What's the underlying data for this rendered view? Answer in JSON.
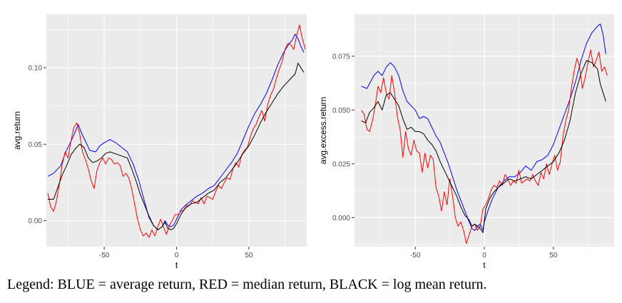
{
  "caption": "Legend: BLUE = average return, RED = median return, BLACK = log mean return.",
  "chart_data": [
    {
      "type": "line",
      "xlabel": "t",
      "ylabel": "avg.return",
      "xlim": [
        -90,
        90
      ],
      "ylim": [
        -0.017,
        0.135
      ],
      "xticks": [
        -50,
        0,
        50
      ],
      "xtick_labels": [
        "-50",
        "0",
        "50"
      ],
      "yticks": [
        0.0,
        0.05,
        0.1
      ],
      "ytick_labels": [
        "0.00",
        "0.05",
        "0.10"
      ],
      "grid": true,
      "series": [
        {
          "color": "#0000ff",
          "x": [
            -89,
            -85,
            -80,
            -77,
            -74,
            -71,
            -68,
            -66,
            -63,
            -60,
            -56,
            -53,
            -50,
            -46,
            -42,
            -38,
            -34,
            -30,
            -26,
            -22,
            -19,
            -16,
            -13,
            -10,
            -8,
            -6,
            -4,
            -2,
            0,
            3,
            6,
            10,
            14,
            18,
            22,
            26,
            30,
            34,
            38,
            42,
            46,
            50,
            54,
            58,
            62,
            66,
            70,
            74,
            78,
            80,
            82,
            84,
            86,
            88
          ],
          "y": [
            0.029,
            0.031,
            0.036,
            0.044,
            0.05,
            0.056,
            0.063,
            0.058,
            0.052,
            0.046,
            0.045,
            0.049,
            0.051,
            0.053,
            0.051,
            0.048,
            0.045,
            0.037,
            0.026,
            0.012,
            0.002,
            -0.003,
            -0.006,
            -0.004,
            0.0,
            -0.003,
            -0.004,
            -0.003,
            0.001,
            0.007,
            0.01,
            0.013,
            0.016,
            0.018,
            0.021,
            0.023,
            0.028,
            0.033,
            0.038,
            0.044,
            0.053,
            0.062,
            0.07,
            0.076,
            0.083,
            0.092,
            0.102,
            0.11,
            0.116,
            0.118,
            0.122,
            0.119,
            0.114,
            0.11
          ]
        },
        {
          "color": "#ff0000",
          "x": [
            -89,
            -87,
            -85,
            -83,
            -81,
            -79,
            -77,
            -75,
            -73,
            -71,
            -69,
            -67,
            -65,
            -63,
            -61,
            -59,
            -57,
            -55,
            -53,
            -51,
            -49,
            -47,
            -45,
            -43,
            -41,
            -39,
            -37,
            -35,
            -33,
            -31,
            -29,
            -27,
            -25,
            -23,
            -21,
            -19,
            -17,
            -15,
            -13,
            -11,
            -9,
            -7,
            -5,
            -3,
            -1,
            1,
            3,
            5,
            7,
            9,
            11,
            13,
            15,
            17,
            19,
            21,
            23,
            25,
            27,
            29,
            31,
            33,
            35,
            37,
            39,
            41,
            43,
            45,
            47,
            49,
            51,
            53,
            55,
            57,
            59,
            61,
            63,
            65,
            67,
            69,
            71,
            73,
            75,
            77,
            79,
            81,
            83,
            85,
            87,
            89
          ],
          "y": [
            0.018,
            0.009,
            0.006,
            0.013,
            0.024,
            0.037,
            0.045,
            0.041,
            0.052,
            0.061,
            0.064,
            0.057,
            0.045,
            0.04,
            0.034,
            0.026,
            0.021,
            0.033,
            0.038,
            0.041,
            0.037,
            0.041,
            0.04,
            0.037,
            0.038,
            0.036,
            0.029,
            0.031,
            0.028,
            0.021,
            0.011,
            0.001,
            -0.006,
            -0.01,
            -0.008,
            -0.011,
            -0.006,
            -0.01,
            -0.004,
            0.001,
            -0.004,
            -0.009,
            -0.003,
            0.0,
            0.004,
            0.004,
            0.006,
            0.007,
            0.01,
            0.01,
            0.013,
            0.012,
            0.011,
            0.015,
            0.011,
            0.016,
            0.015,
            0.014,
            0.019,
            0.023,
            0.021,
            0.025,
            0.028,
            0.027,
            0.034,
            0.038,
            0.035,
            0.043,
            0.046,
            0.048,
            0.055,
            0.06,
            0.063,
            0.068,
            0.072,
            0.065,
            0.076,
            0.082,
            0.086,
            0.093,
            0.099,
            0.104,
            0.112,
            0.116,
            0.115,
            0.112,
            0.121,
            0.128,
            0.119,
            0.112
          ]
        },
        {
          "color": "#000000",
          "x": [
            -89,
            -85,
            -82,
            -79,
            -76,
            -73,
            -70,
            -67,
            -64,
            -61,
            -58,
            -55,
            -52,
            -49,
            -46,
            -43,
            -40,
            -37,
            -34,
            -31,
            -28,
            -25,
            -22,
            -19,
            -16,
            -13,
            -10,
            -8,
            -6,
            -4,
            -2,
            0,
            3,
            6,
            10,
            14,
            18,
            22,
            26,
            30,
            34,
            38,
            42,
            46,
            50,
            54,
            58,
            62,
            66,
            70,
            74,
            78,
            82,
            84,
            86,
            88
          ],
          "y": [
            0.014,
            0.014,
            0.022,
            0.03,
            0.036,
            0.043,
            0.047,
            0.05,
            0.048,
            0.041,
            0.038,
            0.039,
            0.041,
            0.044,
            0.045,
            0.044,
            0.043,
            0.042,
            0.041,
            0.034,
            0.026,
            0.017,
            0.01,
            0.003,
            -0.003,
            -0.006,
            -0.004,
            -0.001,
            -0.005,
            -0.006,
            -0.005,
            -0.002,
            0.004,
            0.008,
            0.011,
            0.012,
            0.015,
            0.018,
            0.02,
            0.025,
            0.028,
            0.033,
            0.038,
            0.044,
            0.049,
            0.056,
            0.064,
            0.071,
            0.077,
            0.083,
            0.088,
            0.092,
            0.096,
            0.103,
            0.1,
            0.097
          ]
        }
      ]
    },
    {
      "type": "line",
      "xlabel": "t",
      "ylabel": "avg.excess.return",
      "xlim": [
        -94,
        94
      ],
      "ylim": [
        -0.0135,
        0.0945
      ],
      "xticks": [
        -50,
        0,
        50
      ],
      "xtick_labels": [
        "-50",
        "0",
        "50"
      ],
      "yticks": [
        0.0,
        0.025,
        0.05,
        0.075
      ],
      "ytick_labels": [
        "0.000",
        "0.025",
        "0.050",
        "0.075"
      ],
      "grid": true,
      "series": [
        {
          "color": "#0000ff",
          "x": [
            -89,
            -85,
            -80,
            -77,
            -74,
            -71,
            -68,
            -65,
            -62,
            -59,
            -56,
            -53,
            -50,
            -47,
            -44,
            -41,
            -38,
            -35,
            -32,
            -29,
            -26,
            -23,
            -20,
            -17,
            -14,
            -11,
            -9,
            -7,
            -5,
            -3,
            -1,
            0,
            3,
            6,
            10,
            14,
            18,
            22,
            26,
            30,
            34,
            38,
            42,
            46,
            50,
            54,
            58,
            62,
            66,
            70,
            74,
            78,
            82,
            84,
            86,
            88
          ],
          "y": [
            0.061,
            0.06,
            0.066,
            0.068,
            0.066,
            0.07,
            0.072,
            0.07,
            0.066,
            0.059,
            0.054,
            0.052,
            0.05,
            0.046,
            0.047,
            0.046,
            0.042,
            0.038,
            0.035,
            0.03,
            0.025,
            0.019,
            0.013,
            0.008,
            0.003,
            -0.002,
            -0.005,
            -0.006,
            -0.004,
            -0.003,
            -0.006,
            -0.002,
            0.004,
            0.009,
            0.014,
            0.017,
            0.019,
            0.019,
            0.021,
            0.024,
            0.022,
            0.026,
            0.027,
            0.029,
            0.034,
            0.041,
            0.048,
            0.055,
            0.063,
            0.073,
            0.081,
            0.086,
            0.089,
            0.09,
            0.085,
            0.076
          ]
        },
        {
          "color": "#ff0000",
          "x": [
            -89,
            -87,
            -85,
            -83,
            -81,
            -79,
            -77,
            -75,
            -73,
            -71,
            -69,
            -67,
            -65,
            -63,
            -61,
            -59,
            -57,
            -55,
            -53,
            -51,
            -49,
            -47,
            -45,
            -43,
            -41,
            -39,
            -37,
            -35,
            -33,
            -31,
            -29,
            -27,
            -25,
            -23,
            -21,
            -19,
            -17,
            -15,
            -13,
            -11,
            -9,
            -7,
            -5,
            -3,
            -1,
            1,
            3,
            5,
            7,
            9,
            11,
            13,
            15,
            17,
            19,
            21,
            23,
            25,
            27,
            29,
            31,
            33,
            35,
            37,
            39,
            41,
            43,
            45,
            47,
            49,
            51,
            53,
            55,
            57,
            59,
            61,
            63,
            65,
            67,
            69,
            71,
            73,
            75,
            77,
            79,
            81,
            83,
            85,
            87,
            89
          ],
          "y": [
            0.05,
            0.048,
            0.041,
            0.04,
            0.045,
            0.052,
            0.061,
            0.058,
            0.065,
            0.058,
            0.055,
            0.066,
            0.058,
            0.047,
            0.041,
            0.028,
            0.04,
            0.032,
            0.029,
            0.036,
            0.031,
            0.03,
            0.021,
            0.03,
            0.023,
            0.029,
            0.027,
            0.014,
            0.01,
            0.003,
            0.012,
            0.006,
            0.018,
            0.01,
            0.0,
            -0.004,
            -0.002,
            -0.006,
            -0.012,
            -0.008,
            -0.004,
            -0.003,
            -0.006,
            -0.004,
            0.004,
            0.006,
            0.009,
            0.013,
            0.015,
            0.014,
            0.017,
            0.015,
            0.02,
            0.018,
            0.015,
            0.017,
            0.016,
            0.022,
            0.016,
            0.017,
            0.018,
            0.017,
            0.02,
            0.017,
            0.015,
            0.021,
            0.018,
            0.025,
            0.02,
            0.025,
            0.029,
            0.022,
            0.026,
            0.038,
            0.045,
            0.05,
            0.06,
            0.068,
            0.074,
            0.07,
            0.06,
            0.065,
            0.072,
            0.078,
            0.07,
            0.073,
            0.077,
            0.068,
            0.07,
            0.066
          ]
        },
        {
          "color": "#000000",
          "x": [
            -89,
            -86,
            -83,
            -80,
            -77,
            -74,
            -71,
            -68,
            -65,
            -62,
            -59,
            -56,
            -53,
            -50,
            -47,
            -44,
            -41,
            -38,
            -35,
            -32,
            -29,
            -26,
            -23,
            -20,
            -17,
            -14,
            -11,
            -9,
            -7,
            -5,
            -3,
            -1,
            1,
            4,
            7,
            10,
            14,
            18,
            22,
            26,
            30,
            34,
            38,
            42,
            46,
            50,
            54,
            58,
            62,
            66,
            70,
            74,
            78,
            82,
            84,
            86,
            88
          ],
          "y": [
            0.045,
            0.044,
            0.049,
            0.051,
            0.054,
            0.05,
            0.057,
            0.058,
            0.055,
            0.052,
            0.046,
            0.041,
            0.042,
            0.04,
            0.04,
            0.039,
            0.036,
            0.034,
            0.031,
            0.026,
            0.022,
            0.018,
            0.014,
            0.01,
            0.005,
            0.001,
            -0.001,
            -0.004,
            -0.003,
            -0.004,
            -0.005,
            -0.007,
            0.004,
            0.009,
            0.012,
            0.014,
            0.016,
            0.018,
            0.017,
            0.018,
            0.019,
            0.018,
            0.02,
            0.022,
            0.024,
            0.026,
            0.03,
            0.036,
            0.045,
            0.058,
            0.067,
            0.073,
            0.072,
            0.069,
            0.062,
            0.058,
            0.054
          ]
        }
      ]
    }
  ]
}
